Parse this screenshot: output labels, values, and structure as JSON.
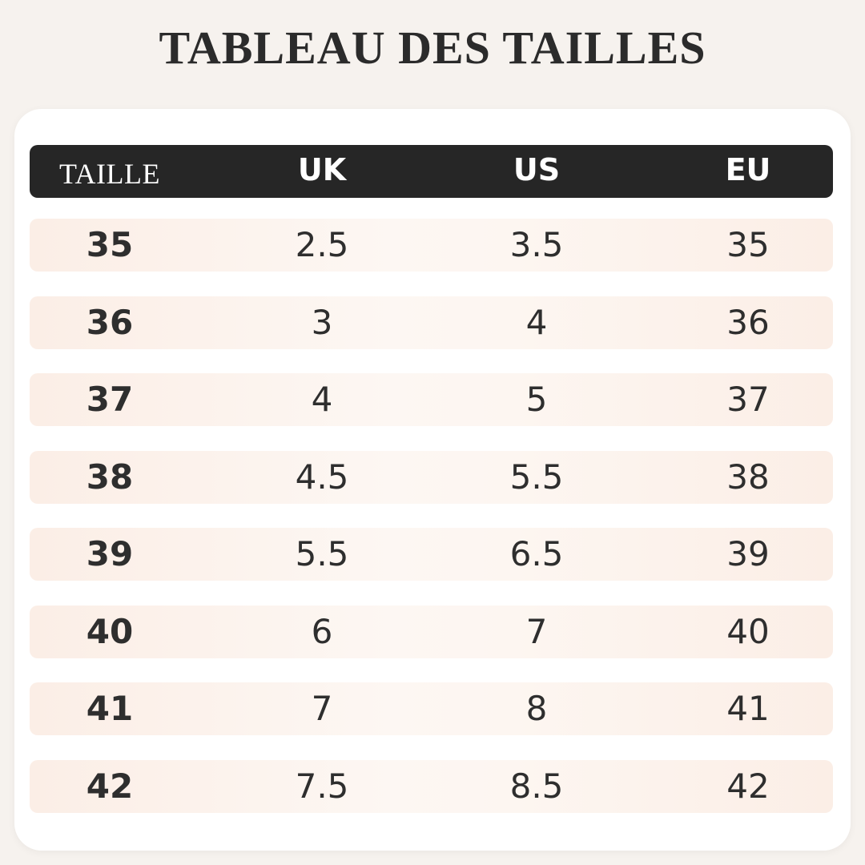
{
  "title": "TABLEAU DES TAILLES",
  "table": {
    "headers": [
      "TAILLE",
      "UK",
      "US",
      "EU"
    ],
    "rows": [
      [
        "35",
        "2.5",
        "3.5",
        "35"
      ],
      [
        "36",
        "3",
        "4",
        "36"
      ],
      [
        "37",
        "4",
        "5",
        "37"
      ],
      [
        "38",
        "4.5",
        "5.5",
        "38"
      ],
      [
        "39",
        "5.5",
        "6.5",
        "39"
      ],
      [
        "40",
        "6",
        "7",
        "40"
      ],
      [
        "41",
        "7",
        "8",
        "41"
      ],
      [
        "42",
        "7.5",
        "8.5",
        "42"
      ]
    ]
  },
  "colors": {
    "background": "#f6f2ee",
    "header_bg": "#262626",
    "header_text": "#ffffff",
    "row_bg": "#fbeee6",
    "text": "#2e2e2e"
  }
}
